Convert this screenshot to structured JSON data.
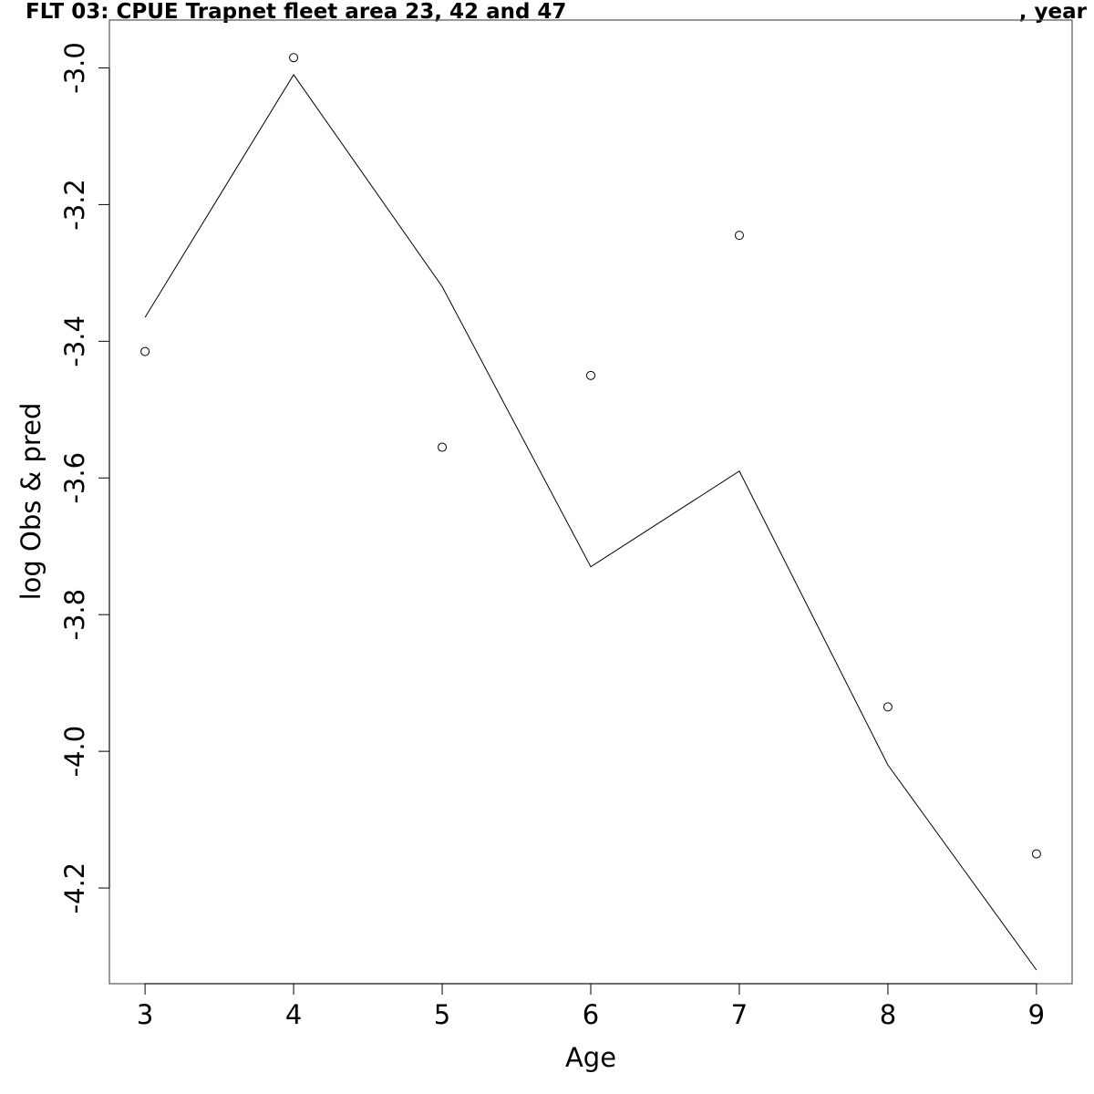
{
  "chart_data": {
    "type": "line",
    "title": "FLT 03: CPUE Trapnet fleet area 23, 42 and 47",
    "title_suffix": ", year",
    "xlabel": "Age",
    "ylabel": "log Obs & pred",
    "xlim": [
      2.76,
      9.24
    ],
    "ylim": [
      -4.34,
      -2.93
    ],
    "x_ticks": [
      3,
      4,
      5,
      6,
      7,
      8,
      9
    ],
    "y_ticks": [
      -4.2,
      -4.0,
      -3.8,
      -3.6,
      -3.4,
      -3.2,
      -3.0
    ],
    "y_tick_labels": [
      "-4.2",
      "-4.0",
      "-3.8",
      "-3.6",
      "-3.4",
      "-3.2",
      "-3.0"
    ],
    "grid": false,
    "series": [
      {
        "style": "line",
        "x": [
          3,
          4,
          5,
          6,
          7,
          8,
          9
        ],
        "values": [
          -3.365,
          -3.01,
          -3.32,
          -3.73,
          -3.59,
          -4.02,
          -4.32
        ]
      },
      {
        "style": "points",
        "x": [
          3,
          4,
          5,
          6,
          7,
          8,
          9
        ],
        "values": [
          -3.415,
          -2.985,
          -3.555,
          -3.45,
          -3.245,
          -3.935,
          -4.15
        ]
      }
    ]
  }
}
